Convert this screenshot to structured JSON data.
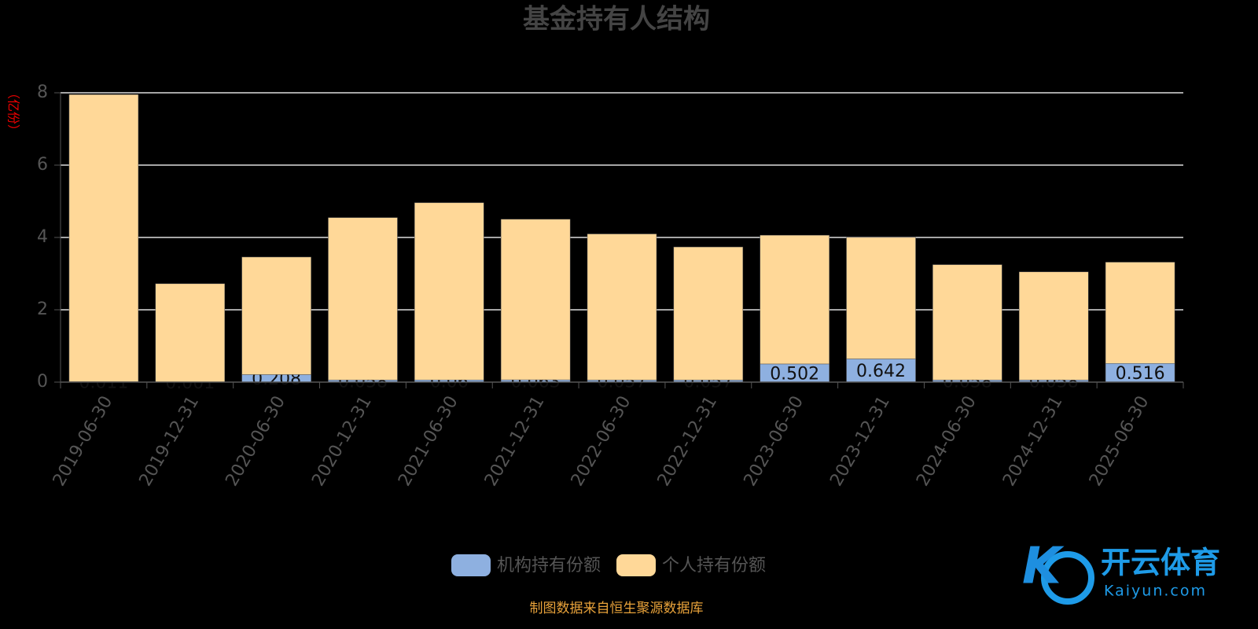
{
  "chart_data": {
    "type": "stacked_bar",
    "title": "基金持有人结构",
    "y_label": "（亿份）",
    "categories": [
      "2019-06-30",
      "2019-12-31",
      "2020-06-30",
      "2020-12-31",
      "2021-06-30",
      "2021-12-31",
      "2022-06-30",
      "2022-12-31",
      "2023-06-30",
      "2023-12-31",
      "2024-06-30",
      "2024-12-31",
      "2025-06-30"
    ],
    "series": [
      {
        "name": "机构持有份额",
        "color": "#8eb0e0",
        "values": [
          0.011,
          0.001,
          0.208,
          0.058,
          0.06,
          0.063,
          0.057,
          0.057,
          0.502,
          0.642,
          0.058,
          0.058,
          0.516
        ]
      },
      {
        "name": "个人持有份额",
        "color": "#ffd898",
        "values": [
          7.94,
          2.72,
          3.25,
          4.49,
          4.9,
          4.44,
          4.04,
          3.68,
          3.56,
          3.36,
          3.19,
          2.99,
          2.8
        ]
      }
    ],
    "ylim": [
      0,
      8
    ],
    "yticks": [
      0,
      2,
      4,
      6,
      8
    ],
    "grid": true
  },
  "footer": {
    "source": "制图数据来自恒生聚源数据库"
  },
  "watermark": {
    "brand": "开云体育",
    "url": "Kaiyun.com"
  }
}
